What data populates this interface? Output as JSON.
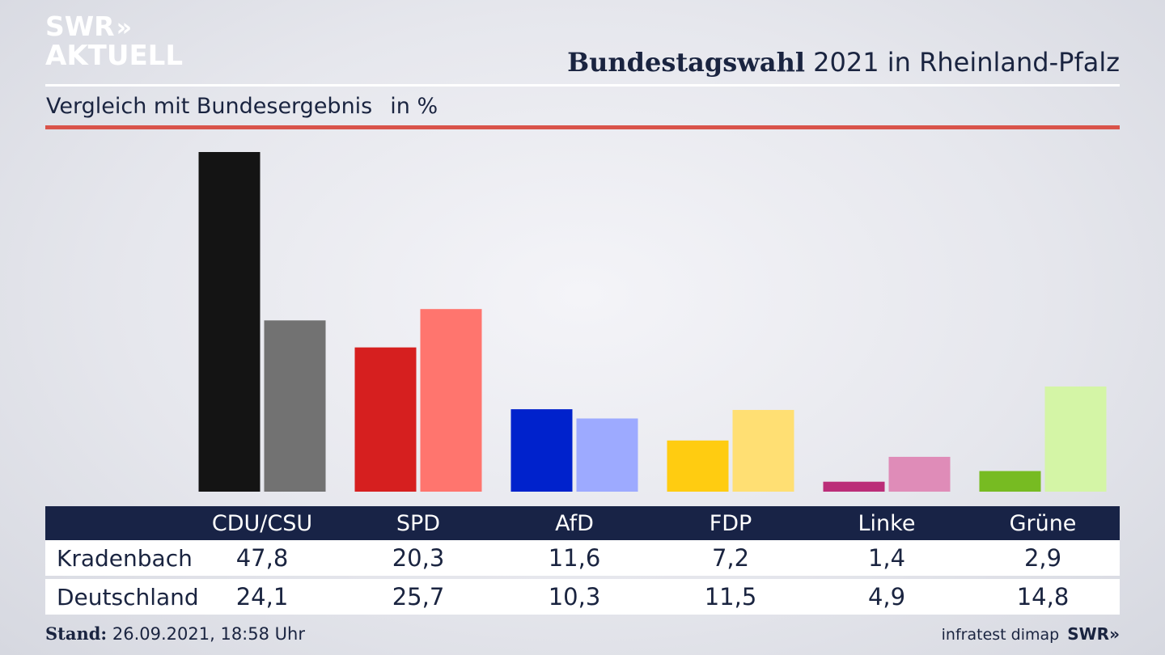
{
  "brand": {
    "logo_line1": "SWR",
    "logo_arrows": "»",
    "logo_line2": "AKTUELL"
  },
  "header": {
    "title_bold": "Bundestagswahl",
    "title_rest": "2021 in Rheinland-Pfalz",
    "subtitle": "Vergleich mit Bundesergebnis",
    "unit": "in %"
  },
  "chart_data": {
    "type": "bar",
    "categories": [
      "CDU/CSU",
      "SPD",
      "AfD",
      "FDP",
      "Linke",
      "Grüne"
    ],
    "series": [
      {
        "name": "Kradenbach",
        "values": [
          47.8,
          20.3,
          11.6,
          7.2,
          1.4,
          2.9
        ],
        "colors": [
          "#141414",
          "#d61f1f",
          "#0022cc",
          "#ffcc11",
          "#bb2d78",
          "#77bb22"
        ]
      },
      {
        "name": "Deutschland",
        "values": [
          24.1,
          25.7,
          10.3,
          11.5,
          4.9,
          14.8
        ],
        "colors": [
          "#727272",
          "#ff756e",
          "#9daaff",
          "#ffdf73",
          "#df8cb8",
          "#d4f5a6"
        ]
      }
    ],
    "value_labels": [
      [
        "47,8",
        "20,3",
        "11,6",
        "7,2",
        "1,4",
        "2,9"
      ],
      [
        "24,1",
        "25,7",
        "10,3",
        "11,5",
        "4,9",
        "14,8"
      ]
    ],
    "ylim": [
      0,
      47.8
    ],
    "grid": false,
    "legend": "table-below"
  },
  "footer": {
    "stand_label": "Stand:",
    "stand_value": "26.09.2021, 18:58 Uhr",
    "source": "infratest dimap",
    "source_brand": "SWR»"
  },
  "colors": {
    "navy": "#182346",
    "accent_red": "#d9534a"
  }
}
